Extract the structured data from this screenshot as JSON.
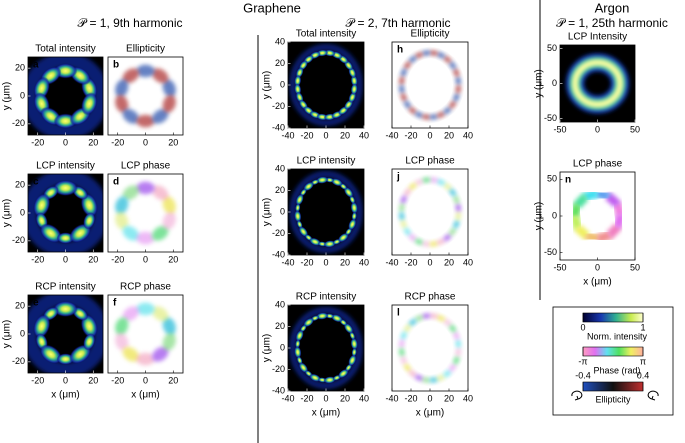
{
  "headings": {
    "graphene": "Graphene",
    "argon": "Argon"
  },
  "columns": [
    "𝒫 = 1, 9th harmonic",
    "𝒫 = 2, 7th harmonic",
    "𝒫 = 1, 25th harmonic"
  ],
  "axis_labels": {
    "x": "x (μm)",
    "y": "y (μm)"
  },
  "panels": [
    {
      "letter": "a",
      "title": "Total intensity",
      "kind": "intensity",
      "xlim": [
        -27,
        27
      ],
      "ylim": [
        -28,
        28
      ],
      "xticks": [
        -20,
        0,
        20
      ],
      "yticks": [
        -20,
        0,
        20
      ]
    },
    {
      "letter": "b",
      "title": "Ellipticity",
      "kind": "ellipticity",
      "xlim": [
        -27,
        27
      ],
      "ylim": [
        -28,
        28
      ],
      "xticks": [
        -20,
        0,
        20
      ]
    },
    {
      "letter": "c",
      "title": "LCP intensity",
      "kind": "intensity",
      "xlim": [
        -27,
        27
      ],
      "ylim": [
        -28,
        28
      ],
      "xticks": [
        -20,
        0,
        20
      ],
      "yticks": [
        -20,
        0,
        20
      ]
    },
    {
      "letter": "d",
      "title": "LCP phase",
      "kind": "phase",
      "xlim": [
        -27,
        27
      ],
      "ylim": [
        -28,
        28
      ],
      "xticks": [
        -20,
        0,
        20
      ]
    },
    {
      "letter": "e",
      "title": "RCP intensity",
      "kind": "intensity",
      "xlim": [
        -27,
        27
      ],
      "ylim": [
        -28,
        28
      ],
      "xticks": [
        -20,
        0,
        20
      ],
      "yticks": [
        -20,
        0,
        20
      ]
    },
    {
      "letter": "f",
      "title": "RCP phase",
      "kind": "phase",
      "xlim": [
        -27,
        27
      ],
      "ylim": [
        -28,
        28
      ],
      "xticks": [
        -20,
        0,
        20
      ]
    },
    {
      "letter": "g",
      "title": "Total intensity",
      "kind": "intensity",
      "xlim": [
        -40,
        40
      ],
      "ylim": [
        -40,
        40
      ],
      "xticks": [
        -40,
        -20,
        0,
        20,
        40
      ],
      "yticks": [
        -40,
        -20,
        0,
        20,
        40
      ]
    },
    {
      "letter": "h",
      "title": "Ellipticity",
      "kind": "ellipticity",
      "xlim": [
        -40,
        40
      ],
      "ylim": [
        -40,
        40
      ],
      "xticks": [
        -40,
        -20,
        0,
        20,
        40
      ]
    },
    {
      "letter": "i",
      "title": "LCP intensity",
      "kind": "intensity",
      "xlim": [
        -40,
        40
      ],
      "ylim": [
        -40,
        40
      ],
      "xticks": [
        -40,
        -20,
        0,
        20,
        40
      ],
      "yticks": [
        -40,
        -20,
        0,
        20,
        40
      ]
    },
    {
      "letter": "j",
      "title": "LCP phase",
      "kind": "phase",
      "xlim": [
        -40,
        40
      ],
      "ylim": [
        -40,
        40
      ],
      "xticks": [
        -40,
        -20,
        0,
        20,
        40
      ]
    },
    {
      "letter": "k",
      "title": "RCP intensity",
      "kind": "intensity",
      "xlim": [
        -40,
        40
      ],
      "ylim": [
        -40,
        40
      ],
      "xticks": [
        -40,
        -20,
        0,
        20,
        40
      ],
      "yticks": [
        -40,
        -20,
        0,
        20,
        40
      ]
    },
    {
      "letter": "l",
      "title": "RCP phase",
      "kind": "phase",
      "xlim": [
        -40,
        40
      ],
      "ylim": [
        -40,
        40
      ],
      "xticks": [
        -40,
        -20,
        0,
        20,
        40
      ]
    },
    {
      "letter": "m",
      "title": "LCP Intensity",
      "kind": "ring-intensity",
      "xlim": [
        -50,
        50
      ],
      "ylim": [
        -55,
        55
      ],
      "xticks": [
        -50,
        0,
        50
      ],
      "yticks": [
        -50,
        0,
        50
      ]
    },
    {
      "letter": "n",
      "title": "LCP phase",
      "kind": "ring-phase",
      "xlim": [
        -50,
        50
      ],
      "ylim": [
        -60,
        60
      ],
      "xticks": [
        -50,
        0,
        50
      ],
      "yticks": [
        -50,
        0,
        50
      ]
    }
  ],
  "legend": {
    "intensity": {
      "ticks": [
        0,
        1
      ],
      "label": "Norm. intensity"
    },
    "phase": {
      "ticks": [
        "-π",
        "π"
      ],
      "label": "Phase (rad)"
    },
    "ellipticity": {
      "ticks": [
        -0.4,
        0.4
      ],
      "label": "Ellipticity"
    }
  }
}
